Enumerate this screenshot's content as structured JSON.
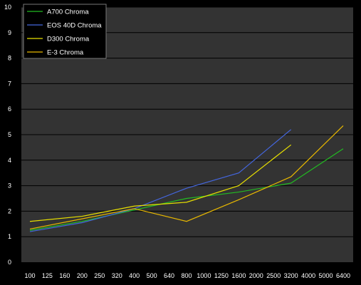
{
  "chart_data": {
    "type": "line",
    "title": "",
    "xlabel": "",
    "ylabel": "",
    "ylim": [
      0,
      10
    ],
    "y_ticks": [
      "0",
      "1",
      "2",
      "3",
      "4",
      "5",
      "6",
      "7",
      "8",
      "9",
      "10"
    ],
    "categories": [
      "100",
      "125",
      "160",
      "200",
      "250",
      "320",
      "400",
      "500",
      "640",
      "800",
      "1000",
      "1250",
      "1600",
      "2000",
      "2500",
      "3200",
      "4000",
      "5000",
      "6400"
    ],
    "grid": "horizontal",
    "legend_position": "top-left",
    "series": [
      {
        "name": "A700 Chroma",
        "color": "#22bb22",
        "points": [
          [
            "100",
            1.25
          ],
          [
            "200",
            1.6
          ],
          [
            "400",
            2.05
          ],
          [
            "800",
            2.5
          ],
          [
            "1600",
            2.75
          ],
          [
            "3200",
            3.1
          ],
          [
            "6400",
            4.45
          ]
        ]
      },
      {
        "name": "EOS 40D Chroma",
        "color": "#4466dd",
        "points": [
          [
            "100",
            1.2
          ],
          [
            "200",
            1.55
          ],
          [
            "400",
            2.1
          ],
          [
            "800",
            2.9
          ],
          [
            "1600",
            3.5
          ],
          [
            "3200",
            5.2
          ]
        ]
      },
      {
        "name": "D300 Chroma",
        "color": "#e8e000",
        "points": [
          [
            "100",
            1.6
          ],
          [
            "200",
            1.8
          ],
          [
            "400",
            2.2
          ],
          [
            "800",
            2.35
          ],
          [
            "1600",
            3.0
          ],
          [
            "3200",
            4.6
          ]
        ]
      },
      {
        "name": "E-3 Chroma",
        "color": "#e8b800",
        "points": [
          [
            "100",
            1.3
          ],
          [
            "200",
            1.7
          ],
          [
            "400",
            2.1
          ],
          [
            "800",
            1.6
          ],
          [
            "1600",
            2.45
          ],
          [
            "3200",
            3.35
          ],
          [
            "6400",
            5.35
          ]
        ]
      }
    ]
  }
}
